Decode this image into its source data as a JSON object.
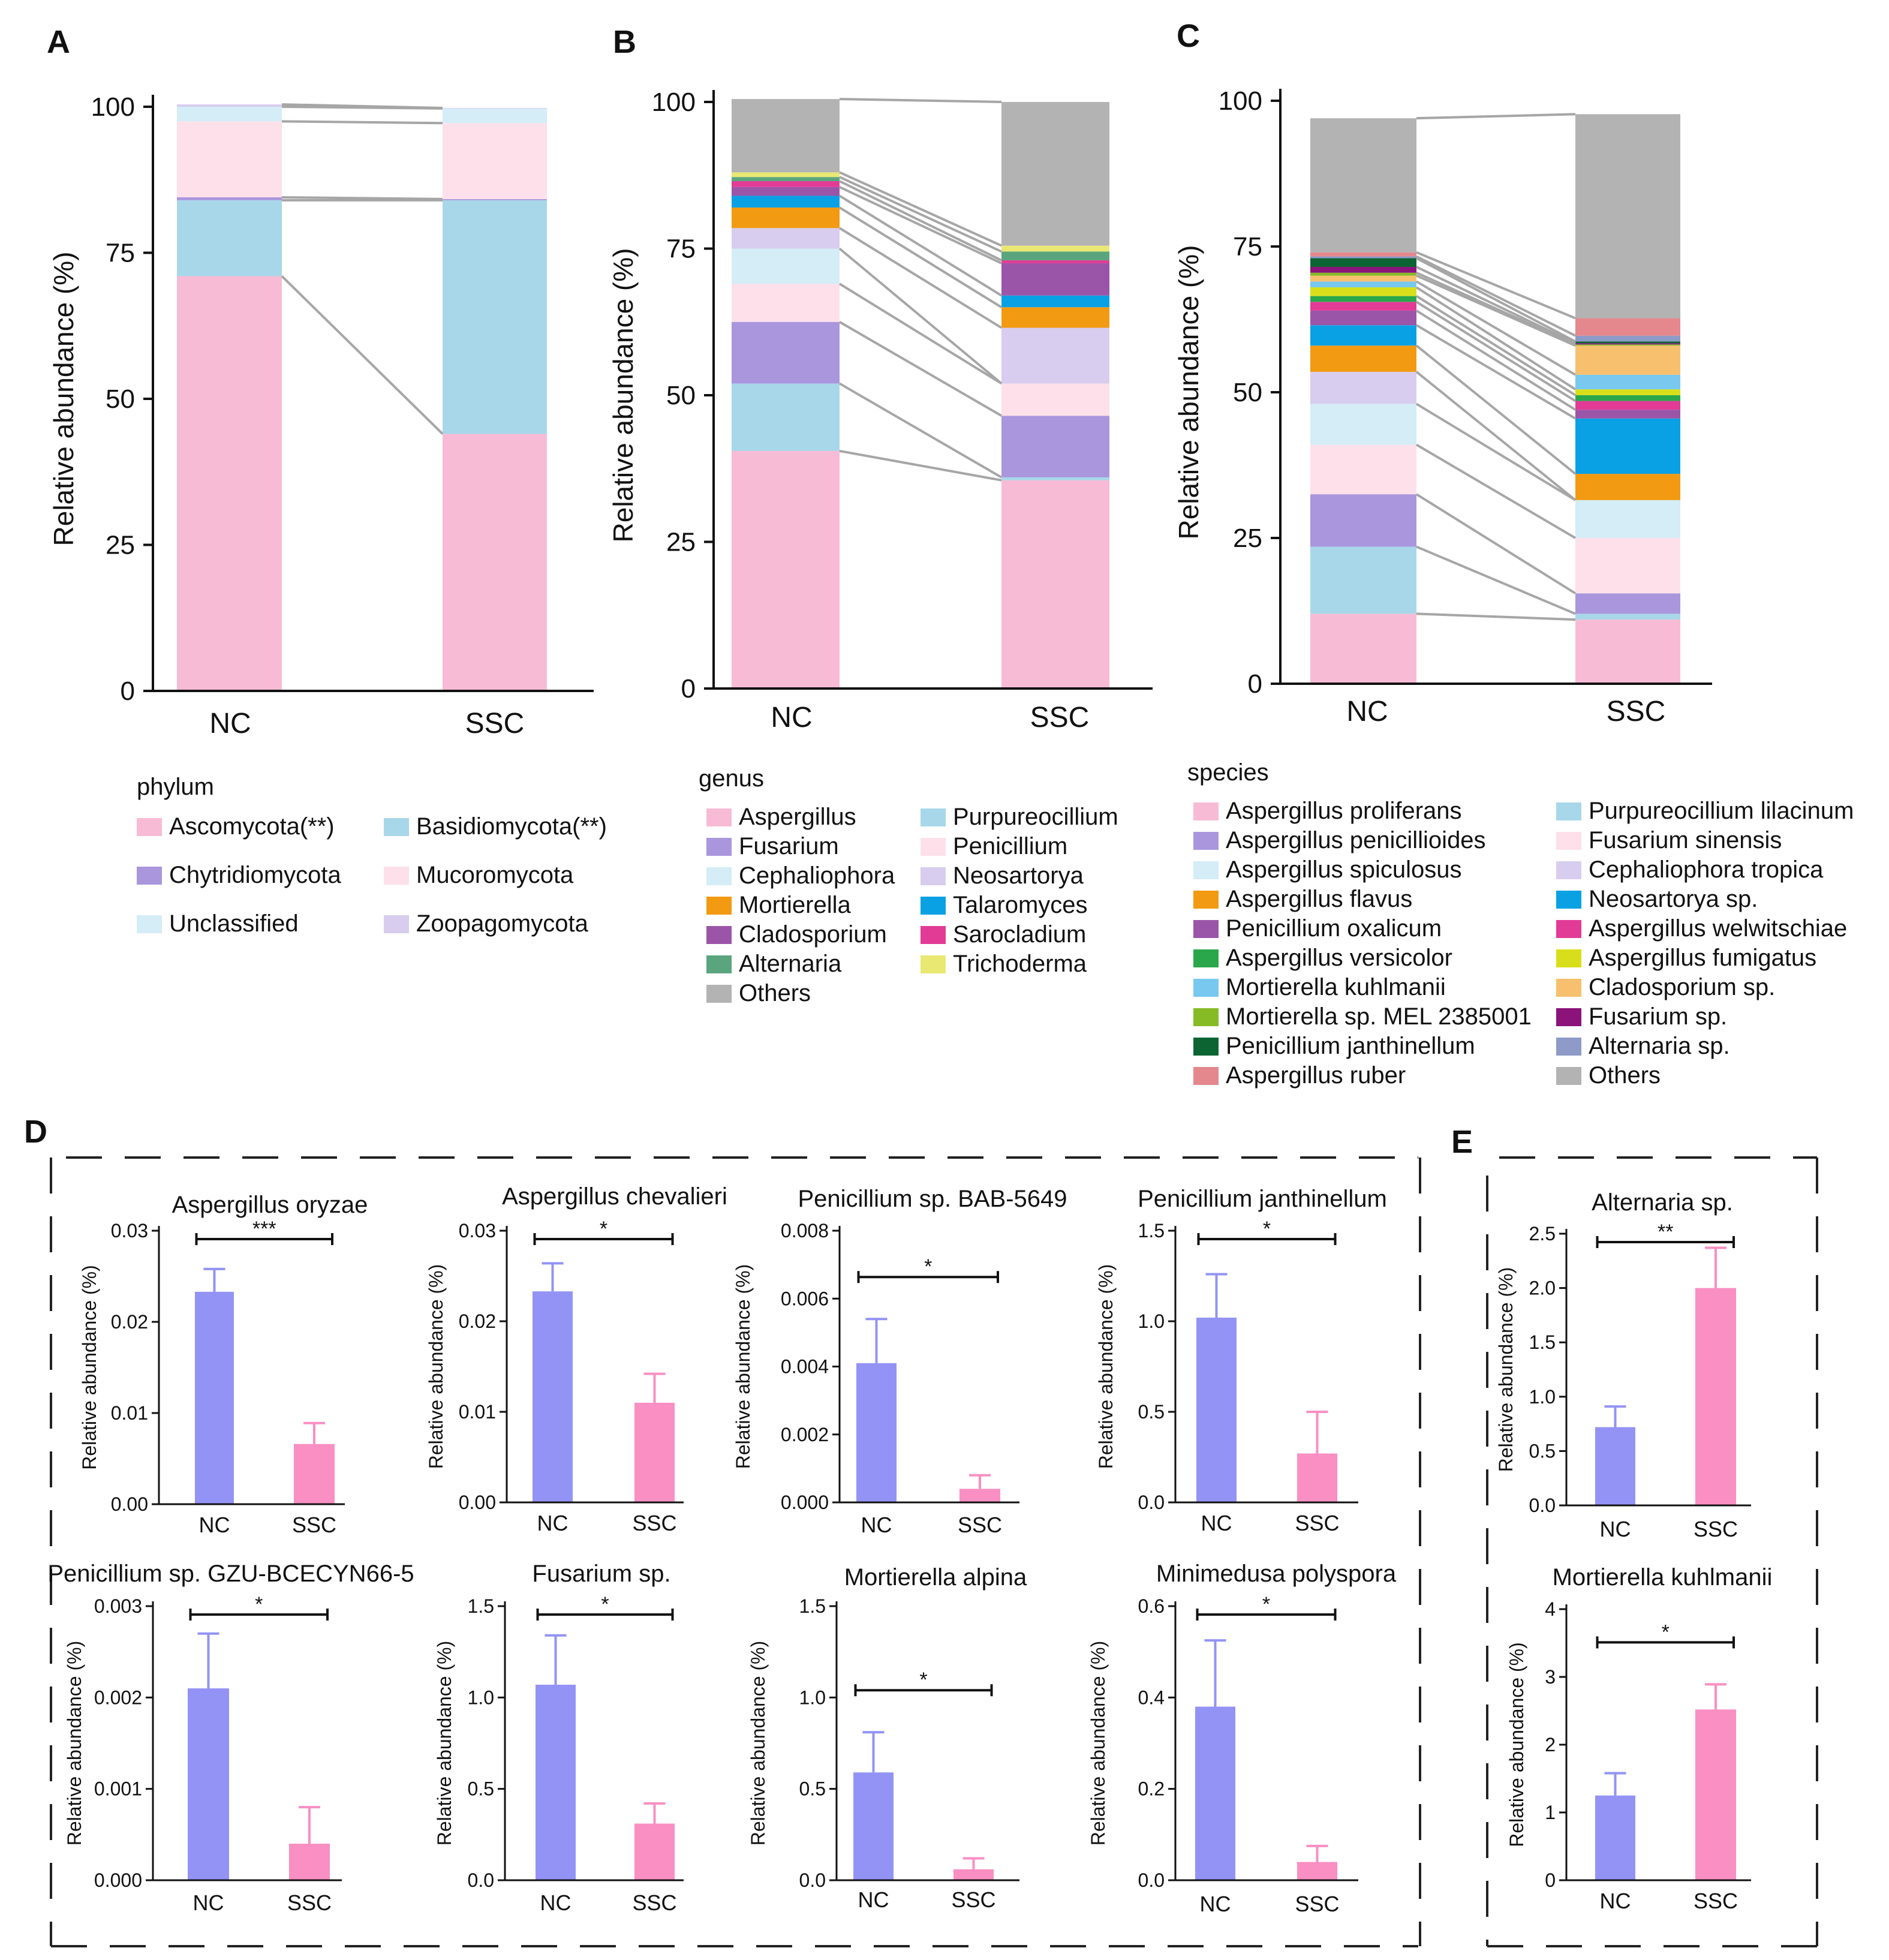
{
  "panel_letters": {
    "A": "A",
    "B": "B",
    "C": "C",
    "D": "D",
    "E": "E"
  },
  "colors": {
    "axis": "#111111",
    "connector": "#a6a6a6",
    "bar_nc": "#9393f5",
    "bar_ssc": "#f98fc3",
    "dash": "#222222"
  },
  "chart_data": [
    {
      "id": "A",
      "type": "bar",
      "stacked": true,
      "categories": [
        "NC",
        "SSC"
      ],
      "ylabel": "Relative abundance (%)",
      "ylim": [
        0,
        100
      ],
      "yticks": [
        "0",
        "25",
        "50",
        "75",
        "100"
      ],
      "legend_title": "phylum",
      "series": [
        {
          "name": "Ascomycota(**)",
          "color": "#f8bbd5",
          "values": [
            71,
            44
          ]
        },
        {
          "name": "Basidiomycota(**)",
          "color": "#a8d7ea",
          "values": [
            13,
            40
          ]
        },
        {
          "name": "Chytridiomycota",
          "color": "#a996dd",
          "values": [
            0.5,
            0.2
          ]
        },
        {
          "name": "Mucoromycota",
          "color": "#fde0ea",
          "values": [
            13,
            13
          ]
        },
        {
          "name": "Unclassified",
          "color": "#d4edf6",
          "values": [
            2.5,
            2.5
          ]
        },
        {
          "name": "Zoopagomycota",
          "color": "#d8cdee",
          "values": [
            0.4,
            0.1
          ]
        }
      ]
    },
    {
      "id": "B",
      "type": "bar",
      "stacked": true,
      "categories": [
        "NC",
        "SSC"
      ],
      "ylabel": "Relative abundance (%)",
      "ylim": [
        0,
        100
      ],
      "yticks": [
        "0",
        "25",
        "50",
        "75",
        "100"
      ],
      "legend_title": "genus",
      "series": [
        {
          "name": "Aspergillus",
          "color": "#f8bbd5",
          "values": [
            40.5,
            35.5
          ]
        },
        {
          "name": "Purpureocillium",
          "color": "#a8d7ea",
          "values": [
            11.5,
            0.5
          ]
        },
        {
          "name": "Fusarium",
          "color": "#a996dd",
          "values": [
            10.5,
            10.5
          ]
        },
        {
          "name": "Penicillium",
          "color": "#fde0ea",
          "values": [
            6.5,
            5.5
          ]
        },
        {
          "name": "Cephaliophora",
          "color": "#d4edf6",
          "values": [
            6,
            0
          ]
        },
        {
          "name": "Neosartorya",
          "color": "#d8cdee",
          "values": [
            3.5,
            9.5
          ]
        },
        {
          "name": "Mortierella",
          "color": "#f29a12",
          "values": [
            3.5,
            3.5
          ]
        },
        {
          "name": "Talaromyces",
          "color": "#0aa1e4",
          "values": [
            2,
            2
          ]
        },
        {
          "name": "Cladosporium",
          "color": "#9a55a8",
          "values": [
            1.5,
            5.5
          ]
        },
        {
          "name": "Sarocladium",
          "color": "#e23b96",
          "values": [
            1,
            0.5
          ]
        },
        {
          "name": "Alternaria",
          "color": "#5aa57e",
          "values": [
            0.7,
            1.5
          ]
        },
        {
          "name": "Trichoderma",
          "color": "#e8e873",
          "values": [
            0.8,
            1
          ]
        },
        {
          "name": "Others",
          "color": "#b3b3b3",
          "values": [
            12.5,
            24.5
          ]
        }
      ]
    },
    {
      "id": "C",
      "type": "bar",
      "stacked": true,
      "categories": [
        "NC",
        "SSC"
      ],
      "ylabel": "Relative abundance (%)",
      "ylim": [
        0,
        100
      ],
      "yticks": [
        "0",
        "25",
        "50",
        "75",
        "100"
      ],
      "legend_title": "species",
      "series": [
        {
          "name": "Aspergillus proliferans",
          "color": "#f8bbd5",
          "values": [
            12,
            11
          ]
        },
        {
          "name": "Purpureocillium lilacinum",
          "color": "#a8d7ea",
          "values": [
            11.5,
            1
          ]
        },
        {
          "name": "Aspergillus penicillioides",
          "color": "#a996dd",
          "values": [
            9,
            3.5
          ]
        },
        {
          "name": "Fusarium sinensis",
          "color": "#fde0ea",
          "values": [
            8.5,
            9.5
          ]
        },
        {
          "name": "Aspergillus spiculosus",
          "color": "#d4edf6",
          "values": [
            7,
            6.5
          ]
        },
        {
          "name": "Cephaliophora tropica",
          "color": "#d8cdee",
          "values": [
            5.5,
            0
          ]
        },
        {
          "name": "Aspergillus flavus",
          "color": "#f29a12",
          "values": [
            4.5,
            4.5
          ]
        },
        {
          "name": "Neosartorya sp.",
          "color": "#0aa1e4",
          "values": [
            3.5,
            9.5
          ]
        },
        {
          "name": "Penicillium oxalicum",
          "color": "#9a55a8",
          "values": [
            2.5,
            1.5
          ]
        },
        {
          "name": "Aspergillus welwitschiae",
          "color": "#e23b96",
          "values": [
            1.5,
            1.5
          ]
        },
        {
          "name": "Aspergillus versicolor",
          "color": "#2aa74a",
          "values": [
            1,
            1
          ]
        },
        {
          "name": "Aspergillus fumigatus",
          "color": "#d8df1a",
          "values": [
            1.5,
            1
          ]
        },
        {
          "name": "Mortierella kuhlmanii",
          "color": "#78c8f0",
          "values": [
            1,
            2.5
          ]
        },
        {
          "name": "Cladosporium sp.",
          "color": "#f7c06e",
          "values": [
            1,
            5
          ]
        },
        {
          "name": "Mortierella sp. MEL 2385001",
          "color": "#86bb26",
          "values": [
            0.5,
            0.2
          ]
        },
        {
          "name": "Fusarium sp.",
          "color": "#8b137a",
          "values": [
            1,
            0.2
          ]
        },
        {
          "name": "Penicillium janthinellum",
          "color": "#0d6433",
          "values": [
            1.5,
            0.3
          ]
        },
        {
          "name": "Alternaria sp.",
          "color": "#8e9ac7",
          "values": [
            0.3,
            1
          ]
        },
        {
          "name": "Aspergillus ruber",
          "color": "#e4888e",
          "values": [
            0.7,
            3
          ]
        },
        {
          "name": "Others",
          "color": "#b3b3b3",
          "values": [
            23,
            35
          ]
        }
      ]
    },
    {
      "id": "D1",
      "type": "bar",
      "title": "Aspergillus oryzae",
      "categories": [
        "NC",
        "SSC"
      ],
      "values": [
        0.0233,
        0.0066
      ],
      "errors": [
        0.0025,
        0.0023
      ],
      "ylim": [
        0,
        0.03
      ],
      "yticks": [
        "0.00",
        "0.01",
        "0.02",
        "0.03"
      ],
      "ylabel": "Relative abundance (%)",
      "significance": "***"
    },
    {
      "id": "D2",
      "type": "bar",
      "title": "Aspergillus chevalieri",
      "categories": [
        "NC",
        "SSC"
      ],
      "values": [
        0.0233,
        0.011
      ],
      "errors": [
        0.0031,
        0.0032
      ],
      "ylim": [
        0,
        0.03
      ],
      "yticks": [
        "0.00",
        "0.01",
        "0.02",
        "0.03"
      ],
      "ylabel": "Relative abundance (%)",
      "significance": "*"
    },
    {
      "id": "D3",
      "type": "bar",
      "title": "Penicillium sp. BAB-5649",
      "categories": [
        "NC",
        "SSC"
      ],
      "values": [
        0.0041,
        0.0004
      ],
      "errors": [
        0.0013,
        0.0004
      ],
      "ylim": [
        0,
        0.008
      ],
      "yticks": [
        "0.000",
        "0.002",
        "0.004",
        "0.006",
        "0.008"
      ],
      "ylabel": "Relative abundance (%)",
      "significance": "*"
    },
    {
      "id": "D4",
      "type": "bar",
      "title": "Penicillium janthinellum",
      "categories": [
        "NC",
        "SSC"
      ],
      "values": [
        1.02,
        0.27
      ],
      "errors": [
        0.24,
        0.23
      ],
      "ylim": [
        0,
        1.5
      ],
      "yticks": [
        "0.0",
        "0.5",
        "1.0",
        "1.5"
      ],
      "ylabel": "Relative abundance (%)",
      "significance": "*"
    },
    {
      "id": "D5",
      "type": "bar",
      "title": "Penicillium sp. GZU-BCECYN66-5",
      "categories": [
        "NC",
        "SSC"
      ],
      "values": [
        0.0021,
        0.0004
      ],
      "errors": [
        0.0006,
        0.0004
      ],
      "ylim": [
        0,
        0.003
      ],
      "yticks": [
        "0.000",
        "0.001",
        "0.002",
        "0.003"
      ],
      "ylabel": "Relative abundance (%)",
      "significance": "*"
    },
    {
      "id": "D6",
      "type": "bar",
      "title": "Fusarium sp.",
      "categories": [
        "NC",
        "SSC"
      ],
      "values": [
        1.07,
        0.31
      ],
      "errors": [
        0.27,
        0.11
      ],
      "ylim": [
        0,
        1.5
      ],
      "yticks": [
        "0.0",
        "0.5",
        "1.0",
        "1.5"
      ],
      "ylabel": "Relative abundance (%)",
      "significance": "*"
    },
    {
      "id": "D7",
      "type": "bar",
      "title": "Mortierella alpina",
      "categories": [
        "NC",
        "SSC"
      ],
      "values": [
        0.59,
        0.06
      ],
      "errors": [
        0.22,
        0.06
      ],
      "ylim": [
        0,
        1.5
      ],
      "yticks": [
        "0.0",
        "0.5",
        "1.0",
        "1.5"
      ],
      "ylabel": "Relative abundance (%)",
      "significance": "*"
    },
    {
      "id": "D8",
      "type": "bar",
      "title": "Minimedusa polyspora",
      "categories": [
        "NC",
        "SSC"
      ],
      "values": [
        0.38,
        0.04
      ],
      "errors": [
        0.145,
        0.035
      ],
      "ylim": [
        0,
        0.6
      ],
      "yticks": [
        "0.0",
        "0.2",
        "0.4",
        "0.6"
      ],
      "ylabel": "Relative abundance (%)",
      "significance": "*"
    },
    {
      "id": "E1",
      "type": "bar",
      "title": "Alternaria sp.",
      "categories": [
        "NC",
        "SSC"
      ],
      "values": [
        0.72,
        2.0
      ],
      "errors": [
        0.19,
        0.37
      ],
      "ylim": [
        0,
        2.5
      ],
      "yticks": [
        "0.0",
        "0.5",
        "1.0",
        "1.5",
        "2.0",
        "2.5"
      ],
      "ylabel": "Relative abundance (%)",
      "significance": "**"
    },
    {
      "id": "E2",
      "type": "bar",
      "title": "Mortierella kuhlmanii",
      "categories": [
        "NC",
        "SSC"
      ],
      "values": [
        1.25,
        2.52
      ],
      "errors": [
        0.33,
        0.37
      ],
      "ylim": [
        0,
        4
      ],
      "yticks": [
        "0",
        "1",
        "2",
        "3",
        "4"
      ],
      "ylabel": "Relative abundance (%)",
      "significance": "*"
    }
  ]
}
